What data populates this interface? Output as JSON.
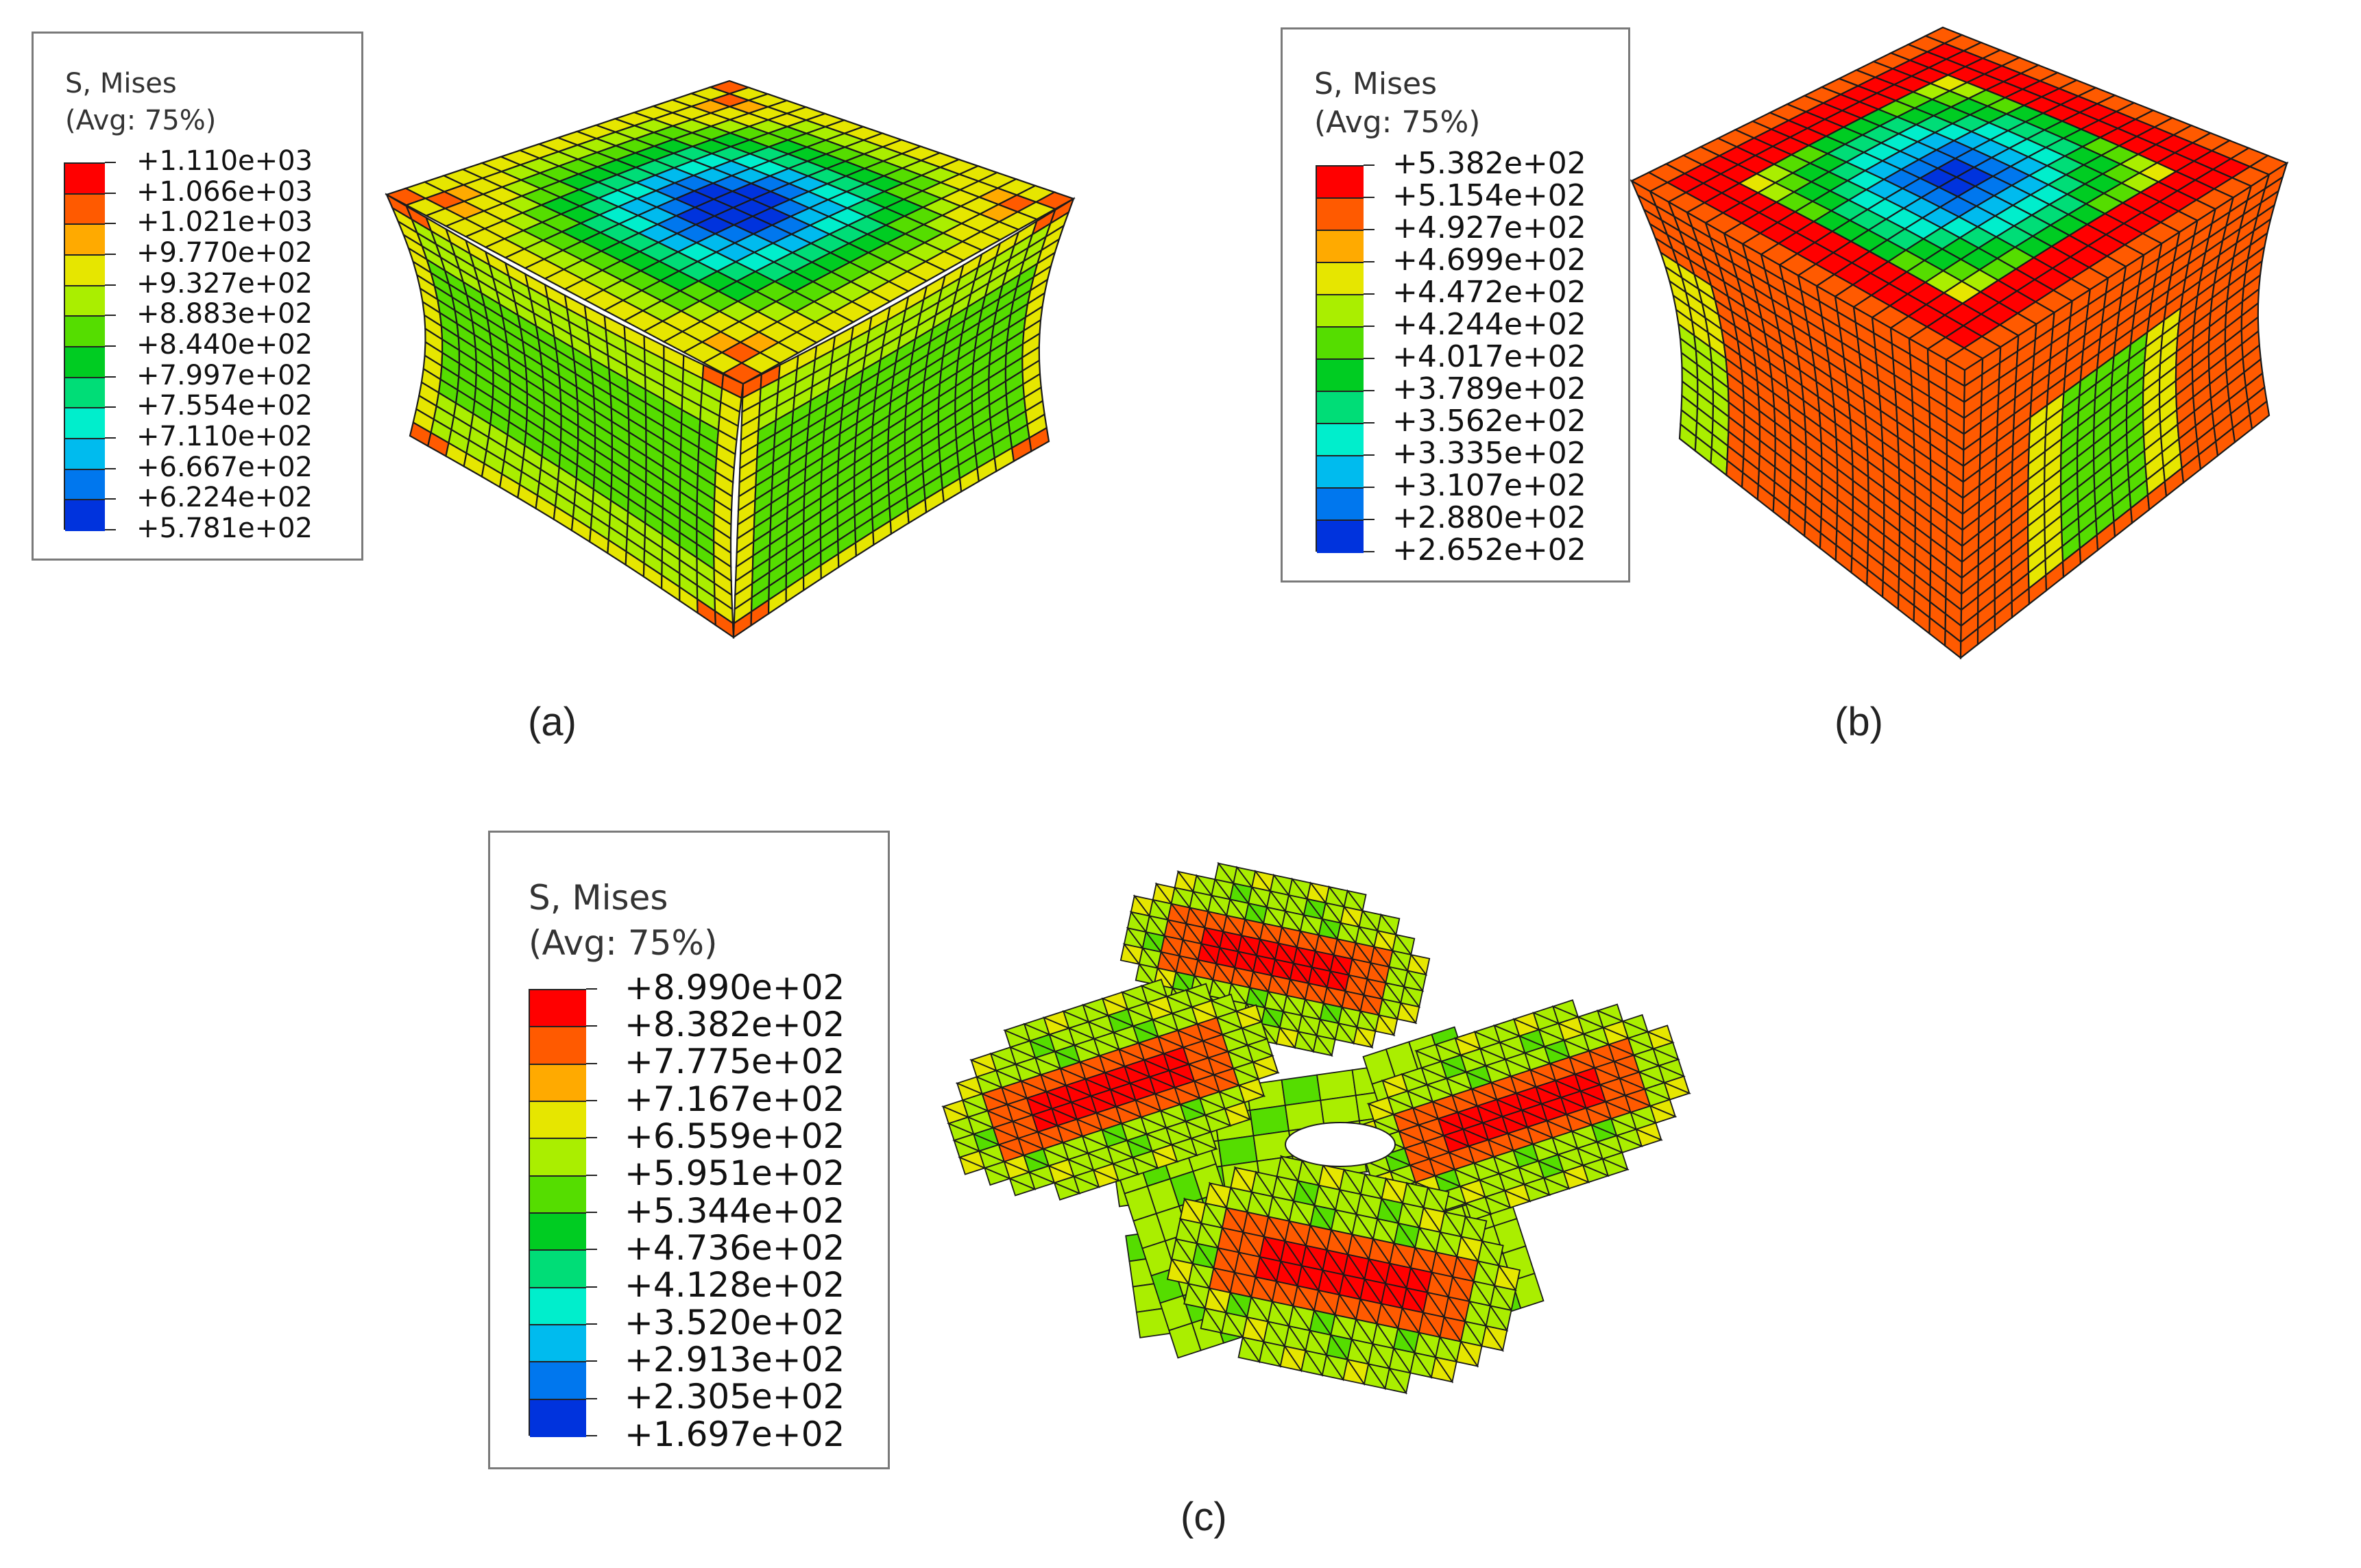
{
  "panels": [
    {
      "id": "a",
      "caption": "(a)",
      "legend": {
        "title": "S, Mises",
        "subtitle": "(Avg: 75%)",
        "values": [
          "+1.110e+03",
          "+1.066e+03",
          "+1.021e+03",
          "+9.770e+02",
          "+9.327e+02",
          "+8.883e+02",
          "+8.440e+02",
          "+7.997e+02",
          "+7.554e+02",
          "+7.110e+02",
          "+6.667e+02",
          "+6.224e+02",
          "+5.781e+02"
        ]
      }
    },
    {
      "id": "b",
      "caption": "(b)",
      "legend": {
        "title": "S, Mises",
        "subtitle": "(Avg: 75%)",
        "values": [
          "+5.382e+02",
          "+5.154e+02",
          "+4.927e+02",
          "+4.699e+02",
          "+4.472e+02",
          "+4.244e+02",
          "+4.017e+02",
          "+3.789e+02",
          "+3.562e+02",
          "+3.335e+02",
          "+3.107e+02",
          "+2.880e+02",
          "+2.652e+02"
        ]
      }
    },
    {
      "id": "c",
      "caption": "(c)",
      "legend": {
        "title": "S, Mises",
        "subtitle": "(Avg: 75%)",
        "values": [
          "+8.990e+02",
          "+8.382e+02",
          "+7.775e+02",
          "+7.167e+02",
          "+6.559e+02",
          "+5.951e+02",
          "+5.344e+02",
          "+4.736e+02",
          "+4.128e+02",
          "+3.520e+02",
          "+2.913e+02",
          "+2.305e+02",
          "+1.697e+02"
        ]
      }
    }
  ],
  "colormap": [
    "#ff0000",
    "#ff5a00",
    "#ffaa00",
    "#e6e600",
    "#aaee00",
    "#55dd00",
    "#00cc22",
    "#00dd77",
    "#00eecc",
    "#00bbee",
    "#0077ee",
    "#0033dd"
  ]
}
